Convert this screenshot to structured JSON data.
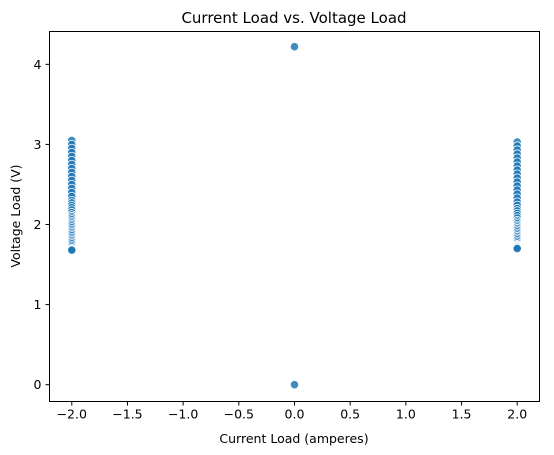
{
  "chart_data": {
    "type": "scatter",
    "title": "Current Load vs. Voltage Load",
    "xlabel": "Current Load (amperes)",
    "ylabel": "Voltage Load (V)",
    "xlim": [
      -2.2,
      2.2
    ],
    "ylim": [
      -0.21,
      4.41
    ],
    "x_ticks": [
      -2.0,
      -1.5,
      -1.0,
      -0.5,
      0.0,
      0.5,
      1.0,
      1.5,
      2.0
    ],
    "x_tick_labels": [
      "−2.0",
      "−1.5",
      "−1.0",
      "−0.5",
      "0.0",
      "0.5",
      "1.0",
      "1.5",
      "2.0"
    ],
    "y_ticks": [
      0,
      1,
      2,
      3,
      4
    ],
    "y_tick_labels": [
      "0",
      "1",
      "2",
      "3",
      "4"
    ],
    "grid": false,
    "marker_color": "#1f77b4",
    "series": [
      {
        "x": [
          -2,
          -2,
          -2,
          -2,
          -2,
          -2,
          -2,
          -2,
          -2,
          -2,
          -2,
          -2,
          -2,
          -2,
          -2,
          -2,
          -2,
          -2,
          -2,
          -2,
          -2,
          -2,
          -2,
          -2,
          -2,
          -2,
          -2,
          -2,
          -2,
          -2,
          -2,
          -2,
          -2,
          -2,
          -2,
          -2,
          -2,
          -2,
          -2,
          -2,
          -2,
          -2,
          -2,
          -2,
          -2,
          0,
          0,
          2,
          2,
          2,
          2,
          2,
          2,
          2,
          2,
          2,
          2,
          2,
          2,
          2,
          2,
          2,
          2,
          2,
          2,
          2,
          2,
          2,
          2,
          2,
          2,
          2,
          2,
          2,
          2,
          2,
          2,
          2,
          2,
          2,
          2,
          2,
          2,
          2,
          2,
          2,
          2,
          2,
          2,
          2
        ],
        "y": [
          3.05,
          3.0,
          2.95,
          2.9,
          2.85,
          2.8,
          2.75,
          2.7,
          2.65,
          2.6,
          2.55,
          2.5,
          2.45,
          2.4,
          2.35,
          2.3,
          2.27,
          2.24,
          2.21,
          2.18,
          2.15,
          2.12,
          2.1,
          2.08,
          2.06,
          2.04,
          2.02,
          2.0,
          1.98,
          1.96,
          1.94,
          1.92,
          1.9,
          1.88,
          1.86,
          1.84,
          1.82,
          1.8,
          1.78,
          1.76,
          1.74,
          1.72,
          1.7,
          1.69,
          1.68,
          4.22,
          0.0,
          3.03,
          2.98,
          2.93,
          2.88,
          2.83,
          2.78,
          2.73,
          2.68,
          2.63,
          2.58,
          2.53,
          2.48,
          2.43,
          2.38,
          2.33,
          2.28,
          2.24,
          2.2,
          2.17,
          2.14,
          2.11,
          2.08,
          2.05,
          2.03,
          2.01,
          1.99,
          1.97,
          1.95,
          1.93,
          1.91,
          1.89,
          1.87,
          1.85,
          1.83,
          1.81,
          1.79,
          1.77,
          1.75,
          1.74,
          1.73,
          1.72,
          1.71,
          1.7
        ]
      }
    ]
  }
}
